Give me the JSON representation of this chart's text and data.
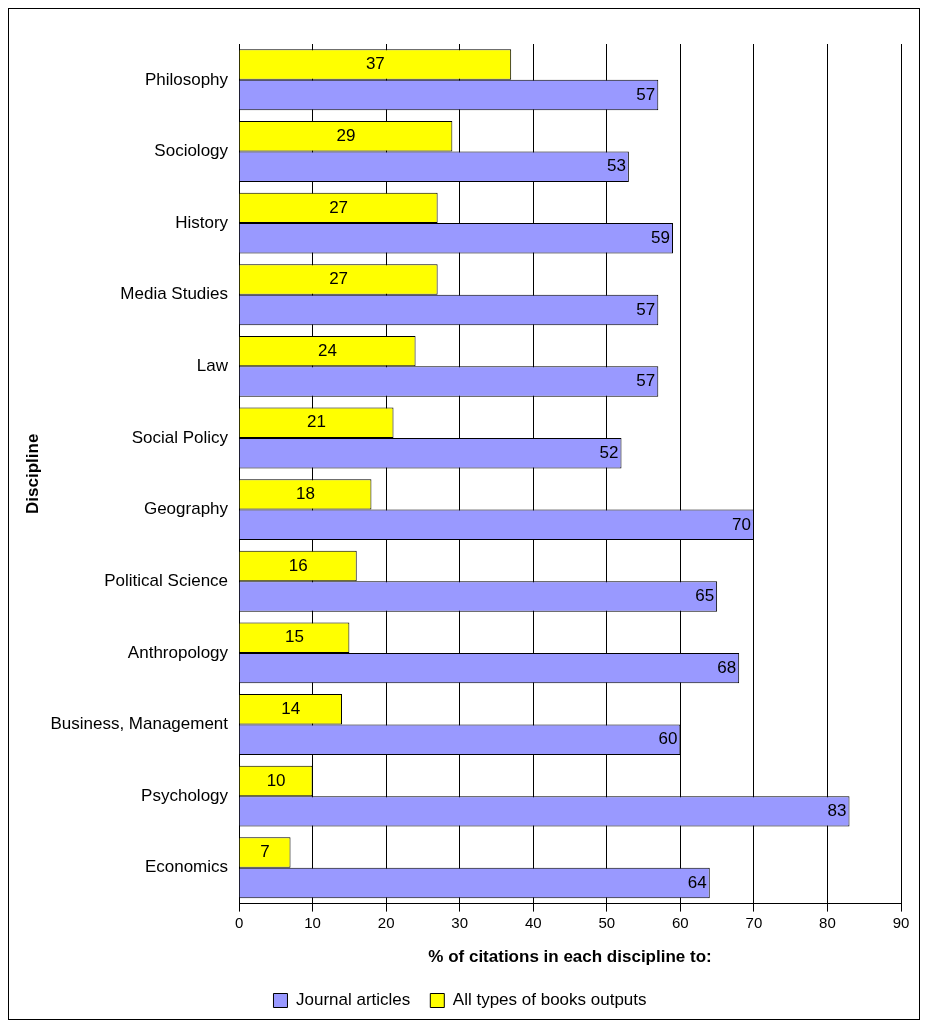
{
  "chart_data": {
    "type": "bar",
    "orientation": "horizontal",
    "ylabel": "Discipline",
    "xlabel": "% of citations in each discipline to:",
    "categories": [
      "Philosophy",
      "Sociology",
      "History",
      "Media Studies",
      "Law",
      "Social Policy",
      "Geography",
      "Political Science",
      "Anthropology",
      "Business, Management",
      "Psychology",
      "Economics"
    ],
    "series": [
      {
        "name": "All types of books outputs",
        "color": "#ffff00",
        "values": [
          37,
          29,
          27,
          27,
          24,
          21,
          18,
          16,
          15,
          14,
          10,
          7
        ]
      },
      {
        "name": "Journal articles",
        "color": "#9999ff",
        "values": [
          57,
          53,
          59,
          57,
          57,
          52,
          70,
          65,
          68,
          60,
          83,
          64
        ]
      }
    ],
    "xlim": [
      0,
      90
    ],
    "xticks": [
      0,
      10,
      20,
      30,
      40,
      50,
      60,
      70,
      80,
      90
    ],
    "grid": "x",
    "legend": "bottom",
    "data_labels": true
  }
}
